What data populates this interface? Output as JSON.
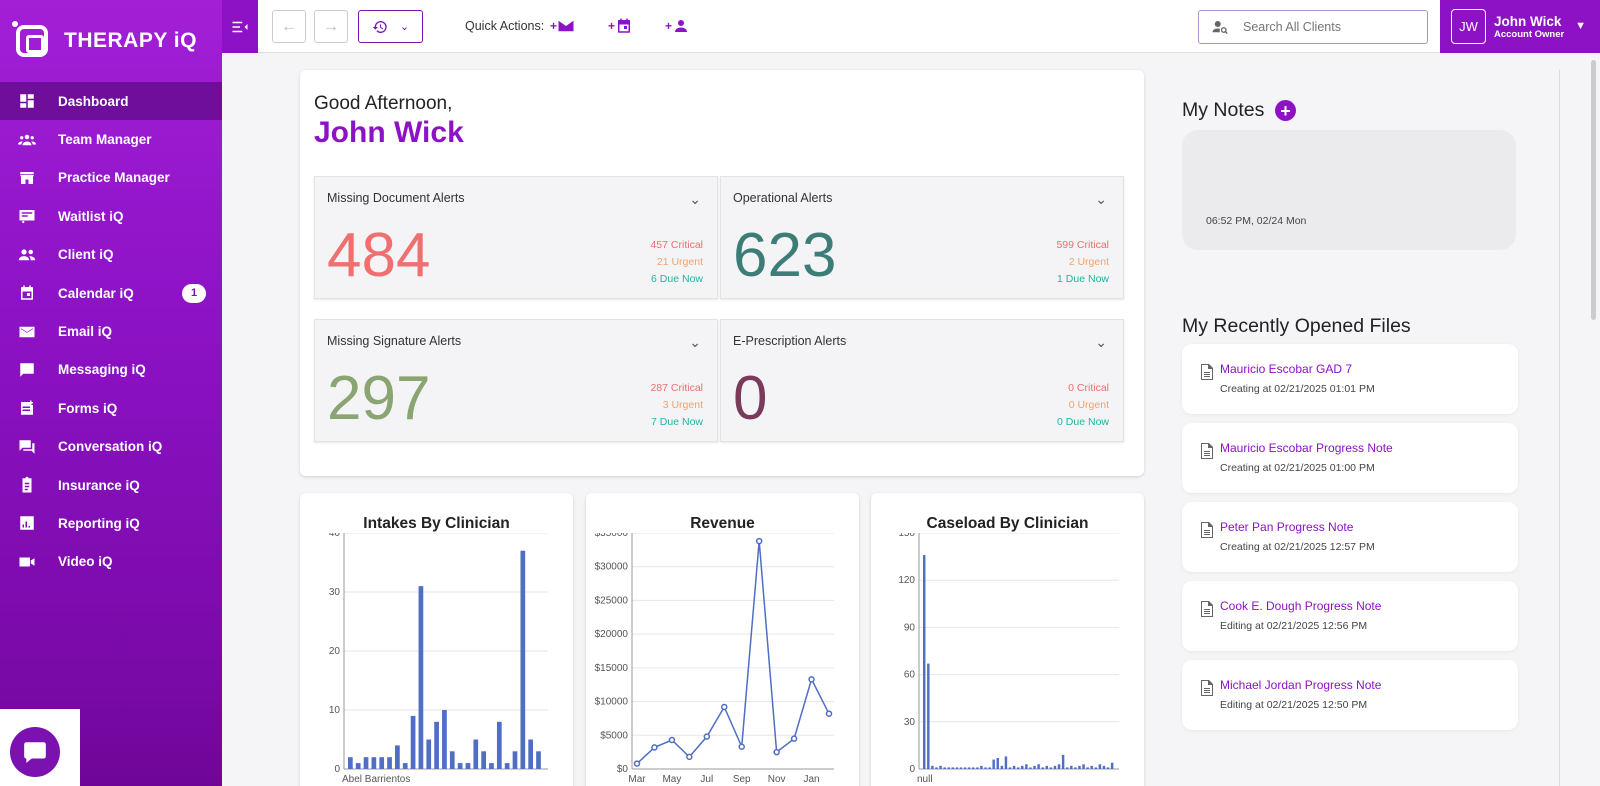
{
  "brand": {
    "name": "THERAPY iQ"
  },
  "sidebar": {
    "items": [
      {
        "label": "Dashboard",
        "icon": "dashboard-icon",
        "active": true
      },
      {
        "label": "Team Manager",
        "icon": "team-icon"
      },
      {
        "label": "Practice Manager",
        "icon": "store-icon"
      },
      {
        "label": "Waitlist iQ",
        "icon": "waitlist-icon"
      },
      {
        "label": "Client iQ",
        "icon": "people-icon"
      },
      {
        "label": "Calendar iQ",
        "icon": "calendar-icon",
        "badge": "1"
      },
      {
        "label": "Email iQ",
        "icon": "email-icon"
      },
      {
        "label": "Messaging iQ",
        "icon": "message-icon"
      },
      {
        "label": "Forms iQ",
        "icon": "form-icon"
      },
      {
        "label": "Conversation iQ",
        "icon": "conversation-icon"
      },
      {
        "label": "Insurance iQ",
        "icon": "insurance-icon"
      },
      {
        "label": "Reporting iQ",
        "icon": "reporting-icon"
      },
      {
        "label": "Video iQ",
        "icon": "video-icon"
      }
    ]
  },
  "topbar": {
    "quick_actions_label": "Quick Actions:",
    "quick_actions": [
      {
        "icon": "add-email-icon",
        "prefix": "+"
      },
      {
        "icon": "add-calendar-icon",
        "prefix": "+"
      },
      {
        "icon": "add-client-icon",
        "prefix": "+"
      }
    ],
    "search_placeholder": "Search All Clients",
    "user": {
      "initials": "JW",
      "name": "John Wick",
      "role": "Account Owner"
    }
  },
  "welcome": {
    "greeting": "Good Afternoon,",
    "name": "John Wick"
  },
  "alerts": [
    {
      "title": "Missing Document Alerts",
      "count": "484",
      "critical": "457 Critical",
      "urgent": "21 Urgent",
      "due": "6 Due Now",
      "color": "#f07070"
    },
    {
      "title": "Operational Alerts",
      "count": "623",
      "critical": "599 Critical",
      "urgent": "2 Urgent",
      "due": "1 Due Now",
      "color": "#3d7d78"
    },
    {
      "title": "Missing Signature Alerts",
      "count": "297",
      "critical": "287 Critical",
      "urgent": "3 Urgent",
      "due": "7 Due Now",
      "color": "#8aa572"
    },
    {
      "title": "E-Prescription Alerts",
      "count": "0",
      "critical": "0 Critical",
      "urgent": "0 Urgent",
      "due": "0 Due Now",
      "color": "#7a3a5c"
    }
  ],
  "chart_data": [
    {
      "type": "bar",
      "title": "Intakes By Clinician",
      "ylim": [
        0,
        40
      ],
      "yticks": [
        "0",
        "10",
        "20",
        "30",
        "40"
      ],
      "first_category_label": "Abel Barrientos",
      "values": [
        2,
        1,
        2,
        2,
        2,
        2,
        4,
        1,
        9,
        31,
        5,
        8,
        10,
        3,
        1,
        1,
        5,
        3,
        1,
        8,
        1,
        3,
        37,
        5,
        3
      ],
      "color": "#4f6ec4"
    },
    {
      "type": "line",
      "title": "Revenue",
      "ylim": [
        0,
        35000
      ],
      "yticks": [
        "$0",
        "$5000",
        "$10000",
        "$15000",
        "$20000",
        "$25000",
        "$30000",
        "$35000"
      ],
      "xticks": [
        "Mar",
        "May",
        "Jul",
        "Sep",
        "Nov",
        "Jan"
      ],
      "values": [
        800,
        3200,
        4300,
        1800,
        4800,
        9200,
        3300,
        33800,
        2500,
        4500,
        13300,
        8200
      ],
      "color": "#4f6ec4"
    },
    {
      "type": "bar",
      "title": "Caseload By Clinician",
      "ylim": [
        0,
        150
      ],
      "yticks": [
        "0",
        "30",
        "60",
        "90",
        "120",
        "150"
      ],
      "first_category_label": "null",
      "values": [
        136,
        67,
        2,
        1,
        2,
        1,
        1,
        1,
        1,
        1,
        1,
        1,
        1,
        1,
        2,
        1,
        1,
        6,
        7,
        2,
        8,
        1,
        2,
        1,
        2,
        3,
        1,
        2,
        3,
        1,
        2,
        1,
        2,
        3,
        9,
        1,
        2,
        1,
        2,
        3,
        1,
        2,
        1,
        3,
        2,
        1,
        4
      ],
      "color": "#4f6ec4"
    }
  ],
  "notes": {
    "title": "My Notes",
    "items": [
      {
        "time": "06:52 PM, 02/24 Mon"
      }
    ]
  },
  "recent_files": {
    "title": "My Recently Opened Files",
    "items": [
      {
        "name": "Mauricio Escobar GAD 7",
        "meta": "Creating at 02/21/2025 01:01 PM"
      },
      {
        "name": "Mauricio Escobar Progress Note",
        "meta": "Creating at 02/21/2025 01:00 PM"
      },
      {
        "name": "Peter Pan Progress Note",
        "meta": "Creating at 02/21/2025 12:57 PM"
      },
      {
        "name": "Cook E. Dough Progress Note",
        "meta": "Editing at 02/21/2025 12:56 PM"
      },
      {
        "name": "Michael Jordan Progress Note",
        "meta": "Editing at 02/21/2025 12:50 PM"
      }
    ]
  }
}
